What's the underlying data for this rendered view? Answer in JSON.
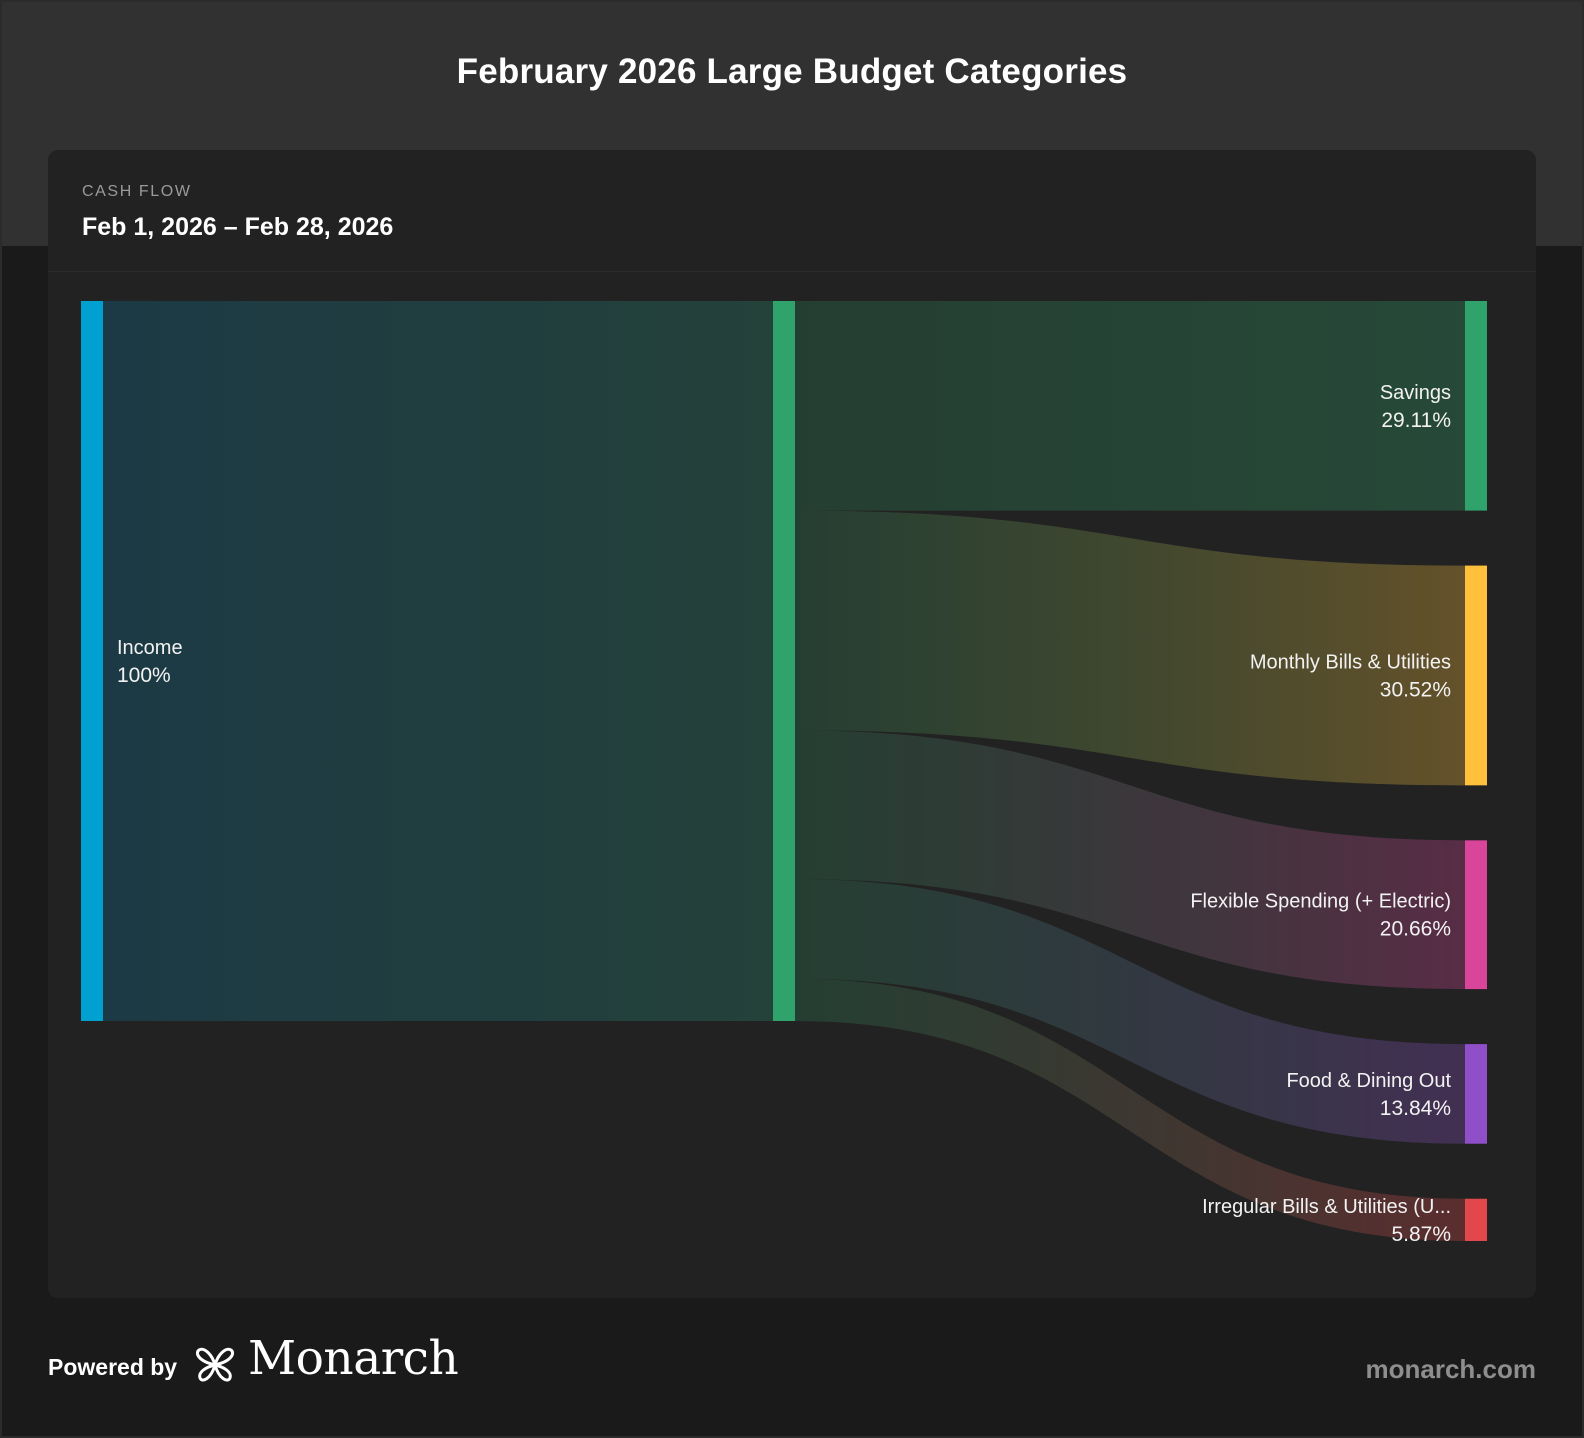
{
  "page": {
    "title": "February 2026 Large Budget Categories"
  },
  "card": {
    "kicker": "CASH FLOW",
    "date_range": "Feb 1, 2026 – Feb 28, 2026"
  },
  "footer": {
    "powered_by": "Powered by",
    "brand": "Monarch",
    "logo_icon": "monarch-butterfly-icon",
    "url": "monarch.com"
  },
  "colors": {
    "income": "#00a0d0",
    "hub": "#2fa36b",
    "savings": "#2fa36b",
    "monthly_bills": "#ffc13b",
    "flexible": "#d8459a",
    "food": "#8e4fc8",
    "irregular": "#e2474b"
  },
  "chart_data": {
    "type": "sankey",
    "title": "February 2026 Large Budget Categories",
    "source": {
      "name": "Income",
      "value": 100,
      "display": "100%",
      "color": "#00a0d0"
    },
    "hub_color": "#2fa36b",
    "targets": [
      {
        "name": "Savings",
        "value": 29.11,
        "display": "29.11%",
        "color": "#2fa36b"
      },
      {
        "name": "Monthly Bills & Utilities",
        "value": 30.52,
        "display": "30.52%",
        "color": "#ffc13b"
      },
      {
        "name": "Flexible Spending (+ Electric)",
        "value": 20.66,
        "display": "20.66%",
        "color": "#d8459a"
      },
      {
        "name": "Food & Dining Out",
        "value": 13.84,
        "display": "13.84%",
        "color": "#8e4fc8"
      },
      {
        "name": "Irregular Bills & Utilities (U...",
        "value": 5.87,
        "display": "5.87%",
        "color": "#e2474b"
      }
    ]
  }
}
